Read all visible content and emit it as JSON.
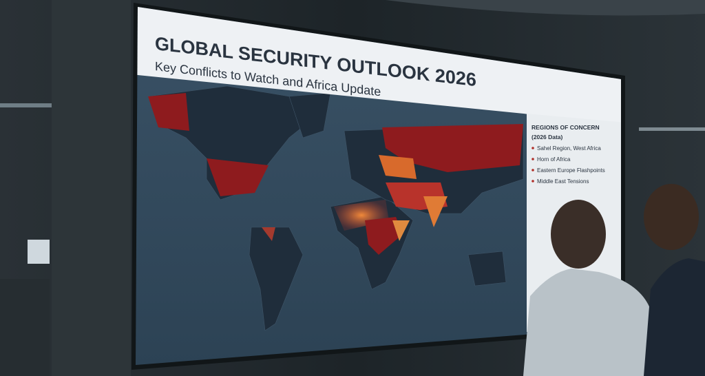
{
  "header": {
    "title": "GLOBAL SECURITY OUTLOOK 2026",
    "subtitle": "Key Conflicts to Watch and Africa Update"
  },
  "panel": {
    "title": "REGIONS OF CONCERN",
    "subtitle": "(2026 Data)",
    "items": [
      "Sahel Region, West Africa",
      "Horn of Africa",
      "Eastern Europe Flashpoints",
      "Middle East Tensions"
    ]
  }
}
